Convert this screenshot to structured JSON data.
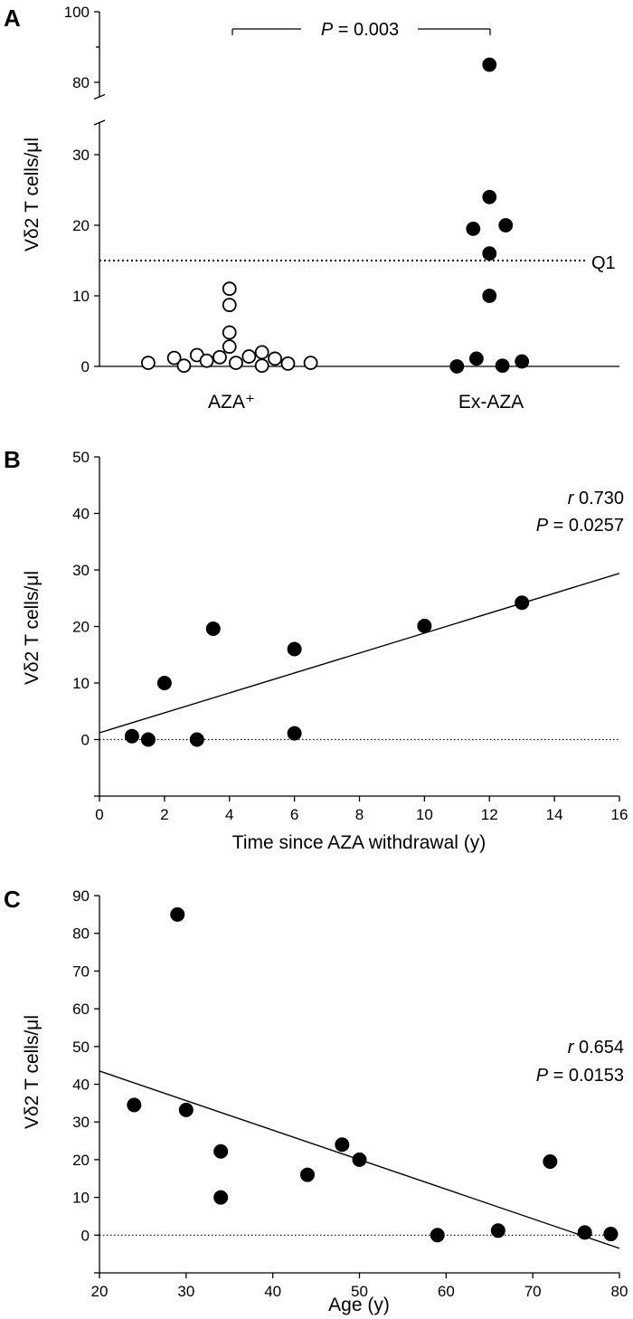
{
  "figure": {
    "panel_letters": [
      "A",
      "B",
      "C"
    ]
  },
  "chart_data": [
    {
      "panel": "A",
      "type": "scatter",
      "ylabel": "Vδ2 T cells/μl",
      "categories": [
        "AZA⁺",
        "Ex-AZA"
      ],
      "ylim": [
        0,
        100
      ],
      "axis_break": [
        35,
        75
      ],
      "yticks_lower": [
        0,
        10,
        20,
        30
      ],
      "yticks_upper": [
        80,
        100
      ],
      "reference_line": {
        "y": 15,
        "label": "Q1",
        "style": "dotted"
      },
      "significance": {
        "p_label": "P",
        "p_value_text": " = 0.003"
      },
      "series": [
        {
          "name": "AZA⁺",
          "marker": "open-circle",
          "points": [
            {
              "x": 1.5,
              "y": 0.5
            },
            {
              "x": 2.3,
              "y": 1.2
            },
            {
              "x": 2.6,
              "y": 0.1
            },
            {
              "x": 3.0,
              "y": 1.6
            },
            {
              "x": 3.3,
              "y": 0.8
            },
            {
              "x": 3.7,
              "y": 1.3
            },
            {
              "x": 4.0,
              "y": 11.0
            },
            {
              "x": 4.0,
              "y": 8.7
            },
            {
              "x": 4.0,
              "y": 4.8
            },
            {
              "x": 4.0,
              "y": 2.8
            },
            {
              "x": 4.2,
              "y": 0.5
            },
            {
              "x": 4.6,
              "y": 1.4
            },
            {
              "x": 5.0,
              "y": 0.1
            },
            {
              "x": 5.0,
              "y": 2.0
            },
            {
              "x": 5.4,
              "y": 1.1
            },
            {
              "x": 5.8,
              "y": 0.4
            },
            {
              "x": 6.5,
              "y": 0.5
            }
          ]
        },
        {
          "name": "Ex-AZA",
          "marker": "filled-circle",
          "points": [
            {
              "x": 12.0,
              "y": 85.0
            },
            {
              "x": 12.0,
              "y": 24.0
            },
            {
              "x": 11.5,
              "y": 19.5
            },
            {
              "x": 12.5,
              "y": 20.0
            },
            {
              "x": 12.0,
              "y": 16.0
            },
            {
              "x": 12.0,
              "y": 10.0
            },
            {
              "x": 11.0,
              "y": 0.0
            },
            {
              "x": 11.6,
              "y": 1.1
            },
            {
              "x": 12.4,
              "y": 0.1
            },
            {
              "x": 13.0,
              "y": 0.7
            }
          ]
        }
      ]
    },
    {
      "panel": "B",
      "type": "scatter",
      "xlabel": "Time since AZA withdrawal (y)",
      "ylabel": "Vδ2 T cells/μl",
      "xlim": [
        0,
        16
      ],
      "ylim": [
        -10,
        50
      ],
      "xticks": [
        0,
        2,
        4,
        6,
        8,
        10,
        12,
        14,
        16
      ],
      "yticks": [
        0,
        10,
        20,
        30,
        40,
        50
      ],
      "points": [
        {
          "x": 1.0,
          "y": 0.6
        },
        {
          "x": 1.5,
          "y": 0.0
        },
        {
          "x": 2.0,
          "y": 10.0
        },
        {
          "x": 3.0,
          "y": 0.0
        },
        {
          "x": 3.5,
          "y": 19.6
        },
        {
          "x": 6.0,
          "y": 16.0
        },
        {
          "x": 6.0,
          "y": 1.1
        },
        {
          "x": 10.0,
          "y": 20.1
        },
        {
          "x": 13.0,
          "y": 24.2
        }
      ],
      "regression": {
        "x0": 0,
        "y0": 1.2,
        "x1": 16,
        "y1": 29.4
      },
      "zero_line": {
        "y": 0,
        "style": "dotted"
      },
      "stats": {
        "r_label": "r",
        "r_value": " 0.730",
        "p_label": "P",
        "p_value_text": " = 0.0257"
      }
    },
    {
      "panel": "C",
      "type": "scatter",
      "xlabel": "Age (y)",
      "ylabel": "Vδ2 T cells/μl",
      "xlim": [
        20,
        80
      ],
      "ylim": [
        -10,
        90
      ],
      "xticks": [
        20,
        30,
        40,
        50,
        60,
        70,
        80
      ],
      "yticks": [
        0,
        10,
        20,
        30,
        40,
        50,
        60,
        70,
        80,
        90
      ],
      "points": [
        {
          "x": 24,
          "y": 34.5
        },
        {
          "x": 29,
          "y": 85.0
        },
        {
          "x": 30,
          "y": 33.2
        },
        {
          "x": 34,
          "y": 22.2
        },
        {
          "x": 34,
          "y": 10.0
        },
        {
          "x": 44,
          "y": 16.0
        },
        {
          "x": 48,
          "y": 24.0
        },
        {
          "x": 50,
          "y": 20.0
        },
        {
          "x": 59,
          "y": 0.0
        },
        {
          "x": 66,
          "y": 1.2
        },
        {
          "x": 72,
          "y": 19.5
        },
        {
          "x": 76,
          "y": 0.7
        },
        {
          "x": 79,
          "y": 0.3
        }
      ],
      "regression": {
        "x0": 20,
        "y0": 43.5,
        "x1": 80,
        "y1": -3.5
      },
      "zero_line": {
        "y": 0,
        "style": "dotted"
      },
      "stats": {
        "r_label": "r",
        "r_value": " 0.654",
        "p_label": "P",
        "p_value_text": " = 0.0153"
      }
    }
  ]
}
